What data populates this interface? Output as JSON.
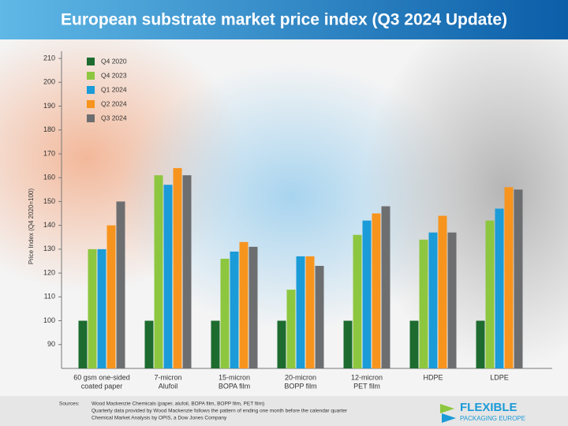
{
  "chart_data": {
    "type": "bar",
    "title": "European substrate market price index (Q3 2024 Update)",
    "y_label": "Price Index (Q4 2020=100)",
    "categories": [
      [
        "60 gsm one-sided",
        "coated paper"
      ],
      [
        "7-micron",
        "Alufoil"
      ],
      [
        "15-micron",
        "BOPA film"
      ],
      [
        "20-micron",
        "BOPP film"
      ],
      [
        "12-micron",
        "PET film"
      ],
      [
        "HDPE"
      ],
      [
        "LDPE"
      ]
    ],
    "series": [
      {
        "name": "Q4 2020",
        "color": "#1d6b2f",
        "values": [
          100,
          100,
          100,
          100,
          100,
          100,
          100
        ]
      },
      {
        "name": "Q4 2023",
        "color": "#8dc63f",
        "values": [
          130,
          161,
          126,
          113,
          136,
          134,
          142
        ]
      },
      {
        "name": "Q1 2024",
        "color": "#1b9bd7",
        "values": [
          130,
          157,
          129,
          127,
          142,
          137,
          147
        ]
      },
      {
        "name": "Q2 2024",
        "color": "#f7941d",
        "values": [
          140,
          164,
          133,
          127,
          145,
          144,
          156
        ]
      },
      {
        "name": "Q3 2024",
        "color": "#6d6e70",
        "values": [
          150,
          161,
          131,
          123,
          148,
          137,
          155
        ]
      }
    ],
    "ylim": [
      80,
      213
    ],
    "yticks": [
      90,
      100,
      110,
      120,
      130,
      140,
      150,
      160,
      170,
      180,
      190,
      200,
      210
    ],
    "legend": "top-left",
    "footer": {
      "label": "Sources:",
      "lines": [
        "Wood Mackenzie Chemicals (paper, alufoil, BOPA film, BOPP film, PET film)",
        "Quarterly data provided by Wood Mackenzie follows the pattern of ending one month before the calendar quarter",
        "Chemical Market Analysis by OPIS, a Dow Jones Company"
      ]
    },
    "logo": [
      "FLEXIBLE",
      "PACKAGING EUROPE"
    ]
  }
}
